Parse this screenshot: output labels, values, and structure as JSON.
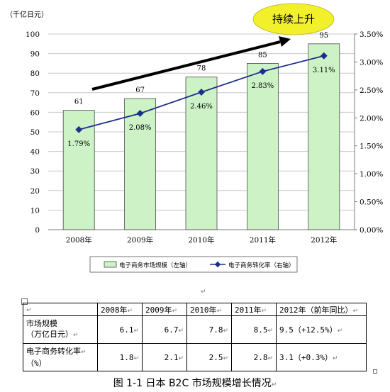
{
  "chart_data": {
    "type": "bar",
    "categories": [
      "2008年",
      "2009年",
      "2010年",
      "2011年",
      "2012年"
    ],
    "series": [
      {
        "name": "电子商务市场规模（左轴）",
        "type": "bar",
        "axis": "left",
        "values": [
          61,
          67,
          78,
          85,
          95
        ],
        "labels": [
          "61",
          "67",
          "78",
          "85",
          "95"
        ]
      },
      {
        "name": "电子商务转化率（右轴）",
        "type": "line",
        "axis": "right",
        "values": [
          1.79,
          2.08,
          2.46,
          2.83,
          3.11
        ],
        "labels": [
          "1.79%",
          "2.08%",
          "2.46%",
          "2.83%",
          "3.11%"
        ]
      }
    ],
    "ylabel": "（千亿日元）",
    "ylim": [
      0,
      100
    ],
    "yticks": [
      "0",
      "10",
      "20",
      "30",
      "40",
      "50",
      "60",
      "70",
      "80",
      "90",
      "100"
    ],
    "y2lim": [
      0,
      3.5
    ],
    "y2ticks": [
      "0.00%",
      "0.50%",
      "1.00%",
      "1.50%",
      "2.00%",
      "2.50%",
      "3.00%",
      "3.50%"
    ],
    "annotation": "持续上升",
    "legend_position": "bottom",
    "grid": true,
    "colors": {
      "bar_fill": "#ccf2c6",
      "bar_border": "#4a4a4a",
      "line": "#1c2f8a",
      "callout": "#f2ef2b",
      "arrow": "#000000",
      "grid": "#c8c8c8"
    }
  },
  "table": {
    "header": [
      "",
      "2008年",
      "2009年",
      "2010年",
      "2011年",
      "2012年（前年同比）"
    ],
    "rows": [
      {
        "label1": "市场规模",
        "label2": "（万亿日元）",
        "cells": [
          "6.1",
          "6.7",
          "7.8",
          "8.5",
          "9.5（+12.5%）"
        ]
      },
      {
        "label1": "电子商务转化率",
        "label2": "（%）",
        "cells": [
          "1.8",
          "2.1",
          "2.5",
          "2.8",
          "3.1（+0.3%）"
        ]
      }
    ]
  },
  "caption": "图 1-1  日本 B2C 市场规模增长情况"
}
